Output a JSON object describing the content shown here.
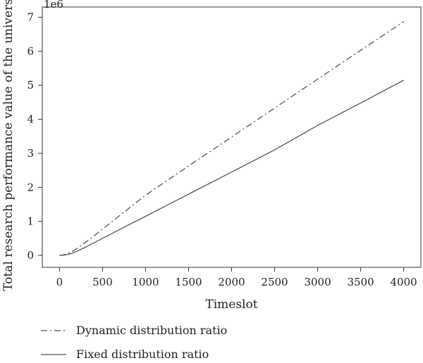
{
  "chart_data": {
    "type": "line",
    "title": "",
    "xlabel": "Timeslot",
    "ylabel": "Total research performance value of the university",
    "y_exponent_label": "1e6",
    "xlim": [
      -200,
      4200
    ],
    "ylim": [
      -0.35,
      7.3
    ],
    "x_ticks": [
      0,
      500,
      1000,
      1500,
      2000,
      2500,
      3000,
      3500,
      4000
    ],
    "y_ticks": [
      0,
      1,
      2,
      3,
      4,
      5,
      6,
      7
    ],
    "grid": false,
    "legend_placement": "below",
    "series": [
      {
        "name": "Dynamic distribution ratio",
        "line_style": "dash-dot",
        "color": "#555555",
        "x": [
          0,
          50,
          100,
          150,
          200,
          300,
          400,
          500,
          750,
          1000,
          1500,
          2000,
          2500,
          3000,
          3500,
          4000
        ],
        "y": [
          0.0,
          0.02,
          0.06,
          0.12,
          0.2,
          0.38,
          0.57,
          0.77,
          1.27,
          1.77,
          2.63,
          3.48,
          4.33,
          5.18,
          6.03,
          6.87
        ]
      },
      {
        "name": "Fixed distribution ratio",
        "line_style": "solid",
        "color": "#555555",
        "x": [
          0,
          50,
          100,
          150,
          200,
          300,
          400,
          500,
          750,
          1000,
          1500,
          2000,
          2500,
          3000,
          3500,
          4000
        ],
        "y": [
          0.0,
          0.01,
          0.03,
          0.07,
          0.12,
          0.24,
          0.37,
          0.5,
          0.83,
          1.15,
          1.8,
          2.45,
          3.1,
          3.82,
          4.48,
          5.15
        ]
      }
    ]
  }
}
